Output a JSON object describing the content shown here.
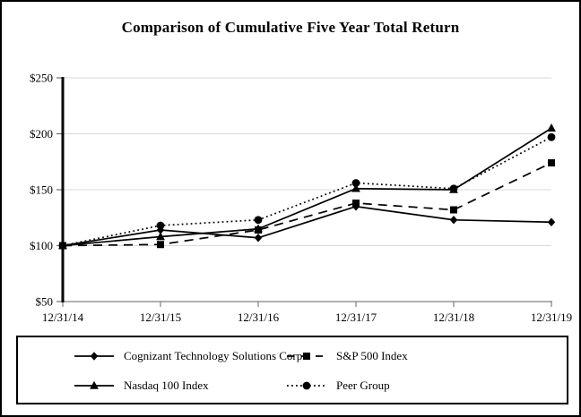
{
  "chart_data": {
    "type": "line",
    "title": "Comparison of Cumulative Five Year Total Return",
    "categories": [
      "12/31/14",
      "12/31/15",
      "12/31/16",
      "12/31/17",
      "12/31/18",
      "12/31/19"
    ],
    "series": [
      {
        "name": "Cognizant Technology Solutions Corp",
        "marker": "diamond",
        "line_style": "solid",
        "values": [
          100,
          114,
          107,
          135,
          123,
          121
        ]
      },
      {
        "name": "S&P 500 Index",
        "marker": "square",
        "line_style": "dashed",
        "values": [
          100,
          101,
          114,
          138,
          132,
          174
        ]
      },
      {
        "name": "Nasdaq 100 Index",
        "marker": "triangle",
        "line_style": "solid",
        "values": [
          100,
          108,
          115,
          151,
          150,
          205
        ]
      },
      {
        "name": "Peer Group",
        "marker": "circle",
        "line_style": "dotted",
        "values": [
          100,
          118,
          123,
          156,
          151,
          197
        ]
      }
    ],
    "xlabel": "",
    "ylabel": "",
    "ylim": [
      50,
      250
    ],
    "y_tick_values": [
      50,
      100,
      150,
      200,
      250
    ],
    "y_tick_labels": [
      "$50",
      "$100",
      "$150",
      "$200",
      "$250"
    ],
    "grid": "horizontal",
    "legend_position": "bottom-box",
    "colors": {
      "series": "#000000",
      "grid": "#d9d9d9",
      "y_axis": "#000000",
      "x_axis": "#808080",
      "tick": "#6e6e6e",
      "background": "#ffffff",
      "border": "#000000"
    }
  }
}
